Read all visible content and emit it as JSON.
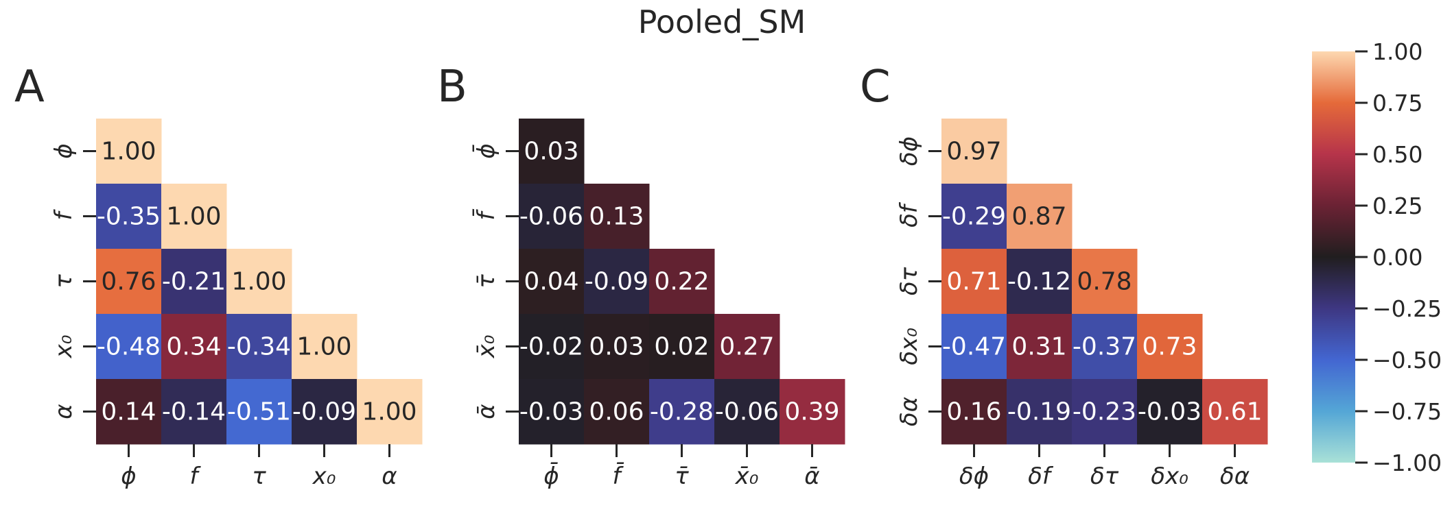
{
  "title": "Pooled_SM",
  "chart_data": [
    {
      "type": "heatmap",
      "panel_label": "A",
      "row_labels": [
        "ϕ",
        "f",
        "τ",
        "x₀",
        "α"
      ],
      "col_labels": [
        "ϕ",
        "f",
        "τ",
        "x₀",
        "α"
      ],
      "values": [
        [
          1.0
        ],
        [
          -0.35,
          1.0
        ],
        [
          0.76,
          -0.21,
          1.0
        ],
        [
          -0.48,
          0.34,
          -0.34,
          1.0
        ],
        [
          0.14,
          -0.14,
          -0.51,
          -0.09,
          1.0
        ]
      ]
    },
    {
      "type": "heatmap",
      "panel_label": "B",
      "row_labels": [
        "ϕ̄",
        "f̄",
        "τ̄",
        "x̄₀",
        "ᾱ"
      ],
      "col_labels": [
        "ϕ̄",
        "f̄",
        "τ̄",
        "x̄₀",
        "ᾱ"
      ],
      "values": [
        [
          0.03
        ],
        [
          -0.06,
          0.13
        ],
        [
          0.04,
          -0.09,
          0.22
        ],
        [
          -0.02,
          0.03,
          0.02,
          0.27
        ],
        [
          -0.03,
          0.06,
          -0.28,
          -0.06,
          0.39
        ]
      ]
    },
    {
      "type": "heatmap",
      "panel_label": "C",
      "row_labels": [
        "δϕ",
        "δf",
        "δτ",
        "δx₀",
        "δα"
      ],
      "col_labels": [
        "δϕ",
        "δf",
        "δτ",
        "δx₀",
        "δα"
      ],
      "values": [
        [
          0.97
        ],
        [
          -0.29,
          0.87
        ],
        [
          0.71,
          -0.12,
          0.78
        ],
        [
          -0.47,
          0.31,
          -0.37,
          0.73
        ],
        [
          0.16,
          -0.19,
          -0.23,
          -0.03,
          0.61
        ]
      ]
    }
  ],
  "colorbar": {
    "min": -1.0,
    "max": 1.0,
    "ticks": [
      "1.00",
      "0.75",
      "0.50",
      "0.25",
      "0.00",
      "−0.25",
      "−0.50",
      "−0.75",
      "−1.00"
    ]
  }
}
